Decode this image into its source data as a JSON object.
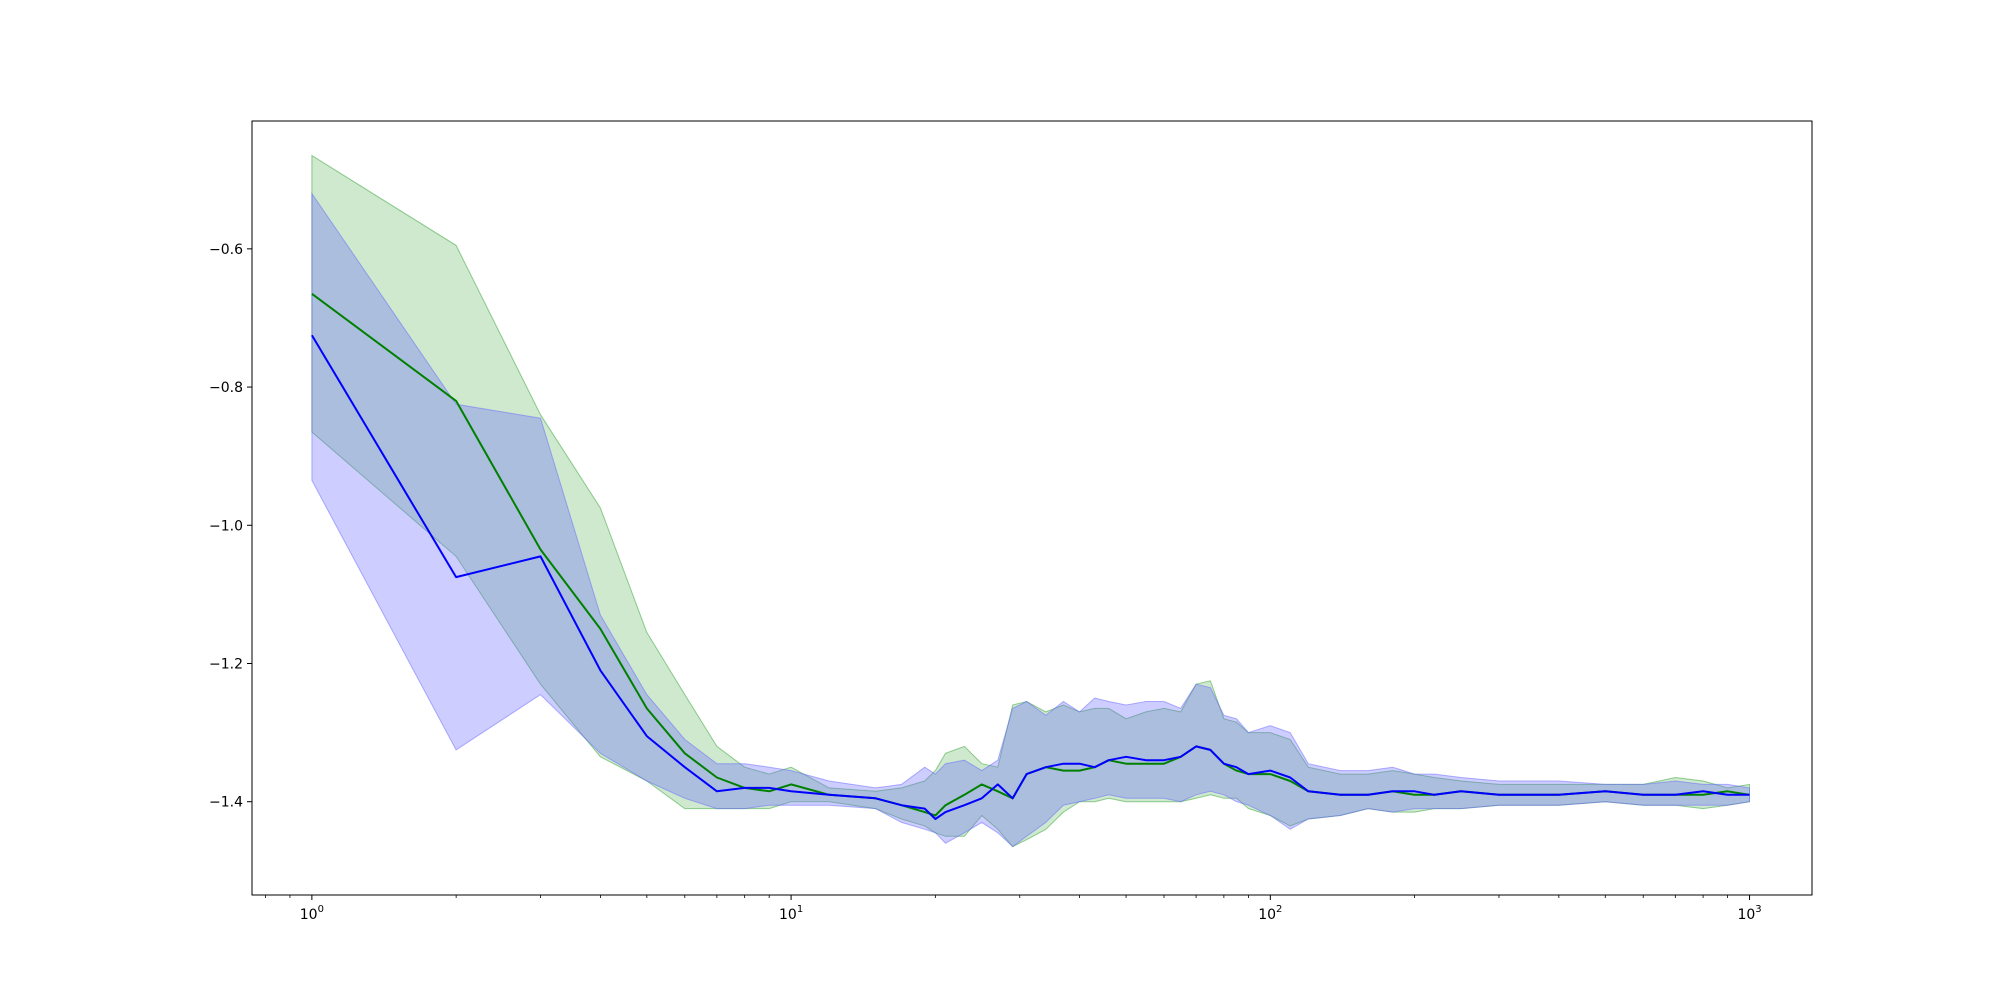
{
  "chart_data": {
    "type": "line",
    "title": "",
    "xlabel": "",
    "ylabel": "",
    "xscale": "log",
    "xlim": [
      0.75,
      1350
    ],
    "ylim": [
      -1.535,
      -0.415
    ],
    "x_ticks": [
      {
        "value": 1,
        "base": "10",
        "exp": "0"
      },
      {
        "value": 10,
        "base": "10",
        "exp": "1"
      },
      {
        "value": 100,
        "base": "10",
        "exp": "2"
      },
      {
        "value": 1000,
        "base": "10",
        "exp": "3"
      }
    ],
    "y_ticks": [
      {
        "value": -0.6,
        "label": "−0.6"
      },
      {
        "value": -0.8,
        "label": "−0.8"
      },
      {
        "value": -1.0,
        "label": "−1.0"
      },
      {
        "value": -1.2,
        "label": "−1.2"
      },
      {
        "value": -1.4,
        "label": "−1.4"
      }
    ],
    "grid": false,
    "legend": "none",
    "series": [
      {
        "color": "#008000",
        "band_color": "#2ca02c",
        "band_opacity": 0.23,
        "x": [
          1,
          2,
          3,
          4,
          5,
          6,
          7,
          8,
          9,
          10,
          12,
          15,
          17,
          19,
          20,
          21,
          23,
          25,
          27,
          29,
          31,
          34,
          37,
          40,
          43,
          46,
          50,
          55,
          60,
          65,
          70,
          75,
          80,
          85,
          90,
          100,
          110,
          120,
          140,
          160,
          180,
          200,
          220,
          250,
          300,
          350,
          400,
          500,
          600,
          700,
          800,
          900,
          1000
        ],
        "mean": [
          -0.665,
          -0.82,
          -1.035,
          -1.15,
          -1.265,
          -1.33,
          -1.365,
          -1.38,
          -1.385,
          -1.375,
          -1.39,
          -1.395,
          -1.405,
          -1.415,
          -1.42,
          -1.405,
          -1.39,
          -1.375,
          -1.385,
          -1.395,
          -1.36,
          -1.35,
          -1.355,
          -1.355,
          -1.35,
          -1.34,
          -1.345,
          -1.345,
          -1.345,
          -1.335,
          -1.32,
          -1.325,
          -1.345,
          -1.355,
          -1.36,
          -1.36,
          -1.37,
          -1.385,
          -1.39,
          -1.39,
          -1.385,
          -1.39,
          -1.39,
          -1.385,
          -1.39,
          -1.39,
          -1.39,
          -1.385,
          -1.39,
          -1.39,
          -1.39,
          -1.385,
          -1.39
        ],
        "upper": [
          -0.465,
          -0.595,
          -0.84,
          -0.975,
          -1.155,
          -1.245,
          -1.32,
          -1.35,
          -1.36,
          -1.35,
          -1.38,
          -1.385,
          -1.38,
          -1.37,
          -1.355,
          -1.33,
          -1.32,
          -1.345,
          -1.35,
          -1.26,
          -1.255,
          -1.27,
          -1.26,
          -1.27,
          -1.265,
          -1.265,
          -1.28,
          -1.27,
          -1.265,
          -1.27,
          -1.23,
          -1.225,
          -1.28,
          -1.285,
          -1.3,
          -1.3,
          -1.31,
          -1.35,
          -1.36,
          -1.36,
          -1.355,
          -1.36,
          -1.365,
          -1.37,
          -1.375,
          -1.375,
          -1.375,
          -1.375,
          -1.375,
          -1.365,
          -1.37,
          -1.38,
          -1.375
        ],
        "lower": [
          -0.865,
          -1.045,
          -1.23,
          -1.335,
          -1.37,
          -1.41,
          -1.41,
          -1.41,
          -1.41,
          -1.4,
          -1.4,
          -1.41,
          -1.425,
          -1.435,
          -1.445,
          -1.45,
          -1.45,
          -1.42,
          -1.44,
          -1.465,
          -1.455,
          -1.44,
          -1.415,
          -1.4,
          -1.4,
          -1.395,
          -1.4,
          -1.4,
          -1.4,
          -1.4,
          -1.395,
          -1.39,
          -1.395,
          -1.395,
          -1.41,
          -1.42,
          -1.435,
          -1.425,
          -1.42,
          -1.41,
          -1.415,
          -1.415,
          -1.41,
          -1.41,
          -1.405,
          -1.405,
          -1.405,
          -1.4,
          -1.405,
          -1.405,
          -1.41,
          -1.405,
          -1.4
        ]
      },
      {
        "color": "#0000ff",
        "band_color": "#6666ff",
        "band_opacity": 0.33,
        "x": [
          1,
          2,
          3,
          4,
          5,
          6,
          7,
          8,
          9,
          10,
          12,
          15,
          17,
          19,
          20,
          21,
          23,
          25,
          27,
          29,
          31,
          34,
          37,
          40,
          43,
          46,
          50,
          55,
          60,
          65,
          70,
          75,
          80,
          85,
          90,
          100,
          110,
          120,
          140,
          160,
          180,
          200,
          220,
          250,
          300,
          350,
          400,
          500,
          600,
          700,
          800,
          900,
          1000
        ],
        "mean": [
          -0.725,
          -1.075,
          -1.045,
          -1.21,
          -1.305,
          -1.35,
          -1.385,
          -1.38,
          -1.38,
          -1.385,
          -1.39,
          -1.395,
          -1.405,
          -1.41,
          -1.425,
          -1.415,
          -1.405,
          -1.395,
          -1.375,
          -1.395,
          -1.36,
          -1.35,
          -1.345,
          -1.345,
          -1.35,
          -1.34,
          -1.335,
          -1.34,
          -1.34,
          -1.335,
          -1.32,
          -1.325,
          -1.345,
          -1.35,
          -1.36,
          -1.355,
          -1.365,
          -1.385,
          -1.39,
          -1.39,
          -1.385,
          -1.385,
          -1.39,
          -1.385,
          -1.39,
          -1.39,
          -1.39,
          -1.385,
          -1.39,
          -1.39,
          -1.385,
          -1.39,
          -1.39
        ],
        "upper": [
          -0.52,
          -0.825,
          -0.845,
          -1.13,
          -1.245,
          -1.31,
          -1.345,
          -1.345,
          -1.35,
          -1.355,
          -1.37,
          -1.38,
          -1.375,
          -1.35,
          -1.36,
          -1.345,
          -1.34,
          -1.355,
          -1.34,
          -1.265,
          -1.255,
          -1.275,
          -1.255,
          -1.27,
          -1.25,
          -1.255,
          -1.26,
          -1.255,
          -1.255,
          -1.265,
          -1.23,
          -1.235,
          -1.275,
          -1.28,
          -1.3,
          -1.29,
          -1.3,
          -1.345,
          -1.355,
          -1.355,
          -1.35,
          -1.36,
          -1.36,
          -1.365,
          -1.37,
          -1.37,
          -1.37,
          -1.375,
          -1.375,
          -1.37,
          -1.375,
          -1.375,
          -1.38
        ],
        "lower": [
          -0.935,
          -1.325,
          -1.245,
          -1.33,
          -1.37,
          -1.395,
          -1.41,
          -1.41,
          -1.405,
          -1.405,
          -1.405,
          -1.41,
          -1.43,
          -1.44,
          -1.445,
          -1.46,
          -1.445,
          -1.43,
          -1.445,
          -1.465,
          -1.45,
          -1.43,
          -1.405,
          -1.4,
          -1.395,
          -1.39,
          -1.395,
          -1.395,
          -1.395,
          -1.4,
          -1.39,
          -1.385,
          -1.39,
          -1.4,
          -1.405,
          -1.42,
          -1.44,
          -1.425,
          -1.42,
          -1.41,
          -1.415,
          -1.41,
          -1.41,
          -1.41,
          -1.405,
          -1.405,
          -1.405,
          -1.4,
          -1.405,
          -1.405,
          -1.405,
          -1.405,
          -1.4
        ]
      }
    ]
  }
}
